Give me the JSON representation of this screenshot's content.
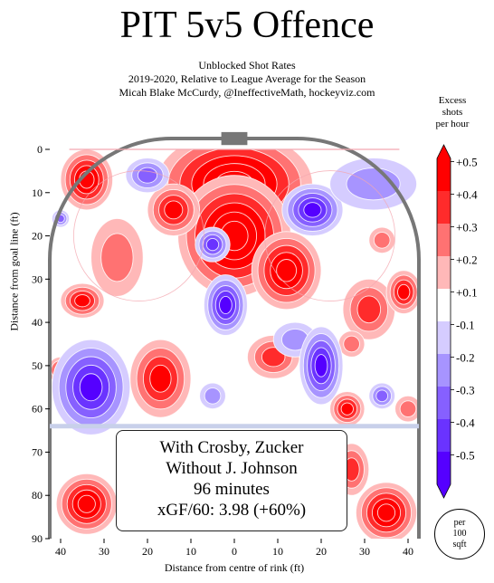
{
  "title": "PIT 5v5 Offence",
  "subtitle_lines": [
    "Unblocked Shot Rates",
    "2019-2020, Relative to League Average for the Season",
    "Micah Blake McCurdy, @IneffectiveMath, hockeyviz.com"
  ],
  "info_box_lines": [
    "With Crosby, Zucker",
    "Without J. Johnson",
    "96 minutes",
    "xGF/60: 3.98 (+60%)"
  ],
  "per_area_lines": [
    "per",
    "100",
    "sqft"
  ],
  "colors": {
    "positive": "#ff0000",
    "negative": "#6600ff",
    "rink_outline": "#777777",
    "goal_line": "#f4a8b0",
    "blue_line": "#c8d0ea"
  },
  "chart_data": {
    "type": "heatmap",
    "xlabel": "Distance from centre of rink (ft)",
    "ylabel": "Distance from goal line (ft)",
    "x_ticks": [
      "40",
      "30",
      "20",
      "10",
      "0",
      "10",
      "20",
      "30",
      "40"
    ],
    "x_tick_values": [
      -40,
      -30,
      -20,
      -10,
      0,
      10,
      20,
      30,
      40
    ],
    "y_ticks": [
      "0",
      "10",
      "20",
      "30",
      "40",
      "50",
      "60",
      "70",
      "80",
      "90"
    ],
    "y_tick_values": [
      0,
      10,
      20,
      30,
      40,
      50,
      60,
      70,
      80,
      90
    ],
    "xlim": [
      -42.5,
      42.5
    ],
    "ylim": [
      0,
      90
    ],
    "legend": {
      "title_lines": [
        "Excess",
        "shots",
        "per hour"
      ],
      "placement": "right",
      "labels": [
        "+0.5",
        "+0.4",
        "+0.3",
        "+0.2",
        "+0.1",
        "-0.1",
        "-0.2",
        "-0.3",
        "-0.4",
        "-0.5"
      ],
      "band_colors": [
        "#ff0000",
        "#ff2b2b",
        "#ff7272",
        "#ffb8b8",
        "#ffffff",
        "#d5ccff",
        "#a794ff",
        "#8660ff",
        "#6a33ff",
        "#5500ff"
      ]
    },
    "blobs": [
      {
        "x": 0,
        "y": 8,
        "rx": 18,
        "ry": 12,
        "level": 6
      },
      {
        "x": 0,
        "y": 20,
        "rx": 13,
        "ry": 14,
        "level": 6
      },
      {
        "x": 12,
        "y": 28,
        "rx": 8,
        "ry": 9,
        "level": 5
      },
      {
        "x": -14,
        "y": 14,
        "rx": 6,
        "ry": 6,
        "level": 4
      },
      {
        "x": -34,
        "y": 7,
        "rx": 6,
        "ry": 7,
        "level": 5
      },
      {
        "x": -35,
        "y": 35,
        "rx": 5,
        "ry": 4,
        "level": 4
      },
      {
        "x": -27,
        "y": 25,
        "rx": 6,
        "ry": 9,
        "level": 2
      },
      {
        "x": -40,
        "y": 51,
        "rx": 3,
        "ry": 3,
        "level": 3
      },
      {
        "x": -17,
        "y": 53,
        "rx": 7,
        "ry": 9,
        "level": 4
      },
      {
        "x": 9,
        "y": 48,
        "rx": 6,
        "ry": 5,
        "level": 3
      },
      {
        "x": 31,
        "y": 37,
        "rx": 6,
        "ry": 7,
        "level": 3
      },
      {
        "x": 39,
        "y": 33,
        "rx": 4,
        "ry": 5,
        "level": 4
      },
      {
        "x": 26,
        "y": 60,
        "rx": 4,
        "ry": 4,
        "level": 4
      },
      {
        "x": 27,
        "y": 74,
        "rx": 4,
        "ry": 6,
        "level": 3
      },
      {
        "x": 27,
        "y": 45,
        "rx": 3,
        "ry": 3,
        "level": 2
      },
      {
        "x": 34,
        "y": 21,
        "rx": 3,
        "ry": 3,
        "level": 2
      },
      {
        "x": 40,
        "y": 60,
        "rx": 3,
        "ry": 3,
        "level": 2
      },
      {
        "x": -34,
        "y": 82,
        "rx": 7,
        "ry": 7,
        "level": 5
      },
      {
        "x": 35,
        "y": 84,
        "rx": 7,
        "ry": 7,
        "level": 5
      },
      {
        "x": -33,
        "y": 55,
        "rx": 9,
        "ry": 11,
        "level": -5
      },
      {
        "x": -5,
        "y": 22,
        "rx": 4,
        "ry": 4,
        "level": -4
      },
      {
        "x": -2,
        "y": 36,
        "rx": 5,
        "ry": 7,
        "level": -5
      },
      {
        "x": 14,
        "y": 44,
        "rx": 5,
        "ry": 4,
        "level": -2
      },
      {
        "x": 18,
        "y": 14,
        "rx": 7,
        "ry": 6,
        "level": -5
      },
      {
        "x": 32,
        "y": 8,
        "rx": 10,
        "ry": 6,
        "level": -2
      },
      {
        "x": -20,
        "y": 6,
        "rx": 5,
        "ry": 4,
        "level": -3
      },
      {
        "x": 20,
        "y": 50,
        "rx": 5,
        "ry": 9,
        "level": -5
      },
      {
        "x": 34,
        "y": 57,
        "rx": 3,
        "ry": 3,
        "level": -3
      },
      {
        "x": -40,
        "y": 16,
        "rx": 2,
        "ry": 2,
        "level": -3
      },
      {
        "x": -5,
        "y": 57,
        "rx": 3,
        "ry": 3,
        "level": -2
      }
    ]
  }
}
